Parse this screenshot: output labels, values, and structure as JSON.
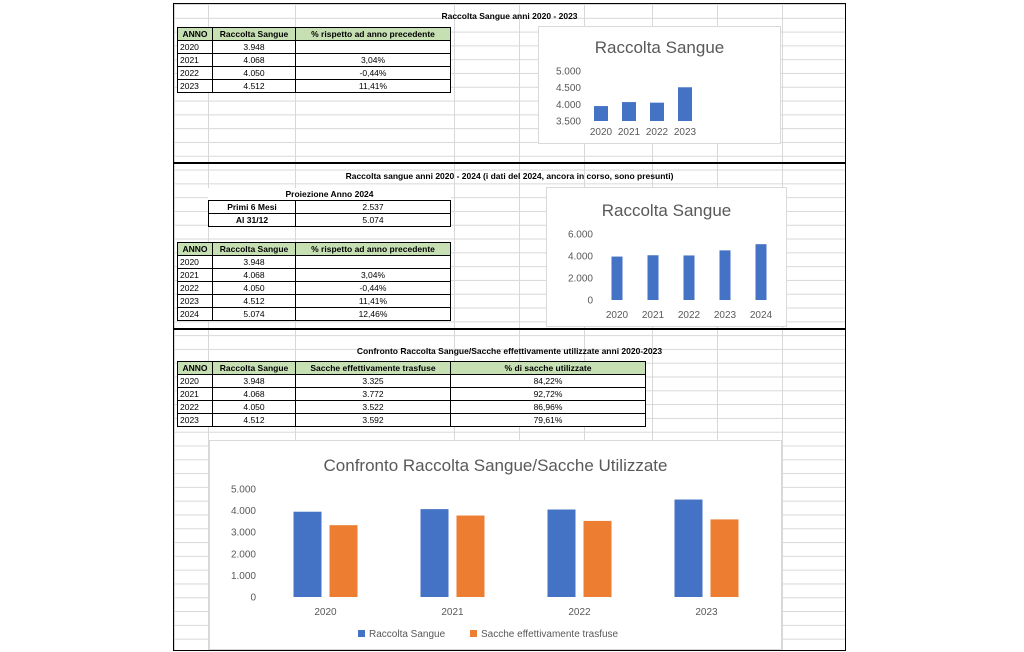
{
  "section1": {
    "title": "Raccolta Sangue anni 2020 - 2023",
    "headers": [
      "ANNO",
      "Raccolta Sangue",
      "% rispetto ad anno precedente"
    ],
    "rows": [
      [
        "2020",
        "3.948",
        ""
      ],
      [
        "2021",
        "4.068",
        "3,04%"
      ],
      [
        "2022",
        "4.050",
        "-0,44%"
      ],
      [
        "2023",
        "4.512",
        "11,41%"
      ]
    ]
  },
  "section2": {
    "title": "Raccolta sangue anni 2020 - 2024 (i dati del 2024, ancora in corso, sono presunti)",
    "projection_title": "Proiezione Anno 2024",
    "projection_rows": [
      [
        "Primi 6 Mesi",
        "2.537"
      ],
      [
        "Al 31/12",
        "5.074"
      ]
    ],
    "headers": [
      "ANNO",
      "Raccolta Sangue",
      "% rispetto ad anno precedente"
    ],
    "rows": [
      [
        "2020",
        "3.948",
        ""
      ],
      [
        "2021",
        "4.068",
        "3,04%"
      ],
      [
        "2022",
        "4.050",
        "-0,44%"
      ],
      [
        "2023",
        "4.512",
        "11,41%"
      ],
      [
        "2024",
        "5.074",
        "12,46%"
      ]
    ]
  },
  "section3": {
    "title": "Confronto Raccolta Sangue/Sacche effettivamente utilizzate anni 2020-2023",
    "headers": [
      "ANNO",
      "Raccolta Sangue",
      "Sacche effettivamente trasfuse",
      "% di sacche utilizzate"
    ],
    "rows": [
      [
        "2020",
        "3.948",
        "3.325",
        "84,22%"
      ],
      [
        "2021",
        "4.068",
        "3.772",
        "92,72%"
      ],
      [
        "2022",
        "4.050",
        "3.522",
        "86,96%"
      ],
      [
        "2023",
        "4.512",
        "3.592",
        "79,61%"
      ]
    ]
  },
  "colors": {
    "blue": "#4472c4",
    "orange": "#ed7d31",
    "header_green": "#c6e0b4"
  },
  "chart_data": [
    {
      "type": "bar",
      "title": "Raccolta Sangue",
      "categories": [
        "2020",
        "2021",
        "2022",
        "2023"
      ],
      "series": [
        {
          "values": [
            3948,
            4068,
            4050,
            4512
          ]
        }
      ],
      "ylim": [
        3500,
        5000
      ],
      "yticks": [
        3500,
        4000,
        4500,
        5000
      ],
      "ytick_labels": [
        "3.500",
        "4.000",
        "4.500",
        "5.000"
      ],
      "grid": false
    },
    {
      "type": "bar",
      "title": "Raccolta Sangue",
      "categories": [
        "2020",
        "2021",
        "2022",
        "2023",
        "2024"
      ],
      "series": [
        {
          "values": [
            3948,
            4068,
            4050,
            4512,
            5074
          ]
        }
      ],
      "ylim": [
        0,
        6000
      ],
      "yticks": [
        0,
        2000,
        4000,
        6000
      ],
      "ytick_labels": [
        "0",
        "2.000",
        "4.000",
        "6.000"
      ],
      "grid": false
    },
    {
      "type": "bar",
      "title": "Confronto Raccolta Sangue/Sacche Utilizzate",
      "categories": [
        "2020",
        "2021",
        "2022",
        "2023"
      ],
      "series": [
        {
          "name": "Raccolta Sangue",
          "values": [
            3948,
            4068,
            4050,
            4512
          ]
        },
        {
          "name": "Sacche effettivamente trasfuse",
          "values": [
            3325,
            3772,
            3522,
            3592
          ]
        }
      ],
      "ylim": [
        0,
        5000
      ],
      "yticks": [
        0,
        1000,
        2000,
        3000,
        4000,
        5000
      ],
      "ytick_labels": [
        "0",
        "1.000",
        "2.000",
        "3.000",
        "4.000",
        "5.000"
      ],
      "legend": "bottom",
      "grid": false
    }
  ]
}
